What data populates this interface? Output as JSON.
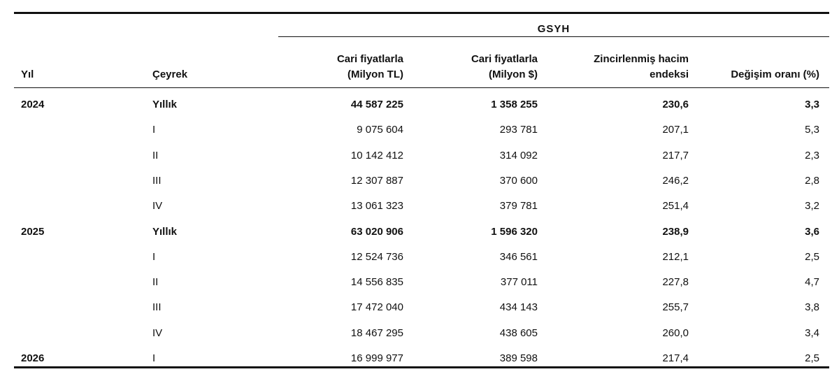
{
  "table": {
    "group_header": "GSYH",
    "columns": [
      [
        "Yıl"
      ],
      [
        "Çeyrek"
      ],
      [
        "Cari fiyatlarla",
        "(Milyon TL)"
      ],
      [
        "Cari fiyatlarla",
        "(Milyon $)"
      ],
      [
        "Zincirlenmiş hacim",
        "endeksi"
      ],
      [
        "Değişim oranı (%)"
      ]
    ],
    "groups": [
      {
        "year": "2024",
        "rows": [
          [
            "Yıllık",
            "44 587 225",
            "1 358 255",
            "230,6",
            "3,3"
          ],
          [
            "I",
            "9 075 604",
            "293 781",
            "207,1",
            "5,3"
          ],
          [
            "II",
            "10 142 412",
            "314 092",
            "217,7",
            "2,3"
          ],
          [
            "III",
            "12 307 887",
            "370 600",
            "246,2",
            "2,8"
          ],
          [
            "IV",
            "13 061 323",
            "379 781",
            "251,4",
            "3,2"
          ]
        ]
      },
      {
        "year": "2025",
        "rows": [
          [
            "Yıllık",
            "63 020 906",
            "1 596 320",
            "238,9",
            "3,6"
          ],
          [
            "I",
            "12 524 736",
            "346 561",
            "212,1",
            "2,5"
          ],
          [
            "II",
            "14 556 835",
            "377 011",
            "227,8",
            "4,7"
          ],
          [
            "III",
            "17 472 040",
            "434 143",
            "255,7",
            "3,8"
          ],
          [
            "IV",
            "18 467 295",
            "438 605",
            "260,0",
            "3,4"
          ]
        ]
      },
      {
        "year": "2026",
        "rows": [
          [
            "I",
            "16 999 977",
            "389 598",
            "217,4",
            "2,5"
          ]
        ]
      }
    ]
  }
}
